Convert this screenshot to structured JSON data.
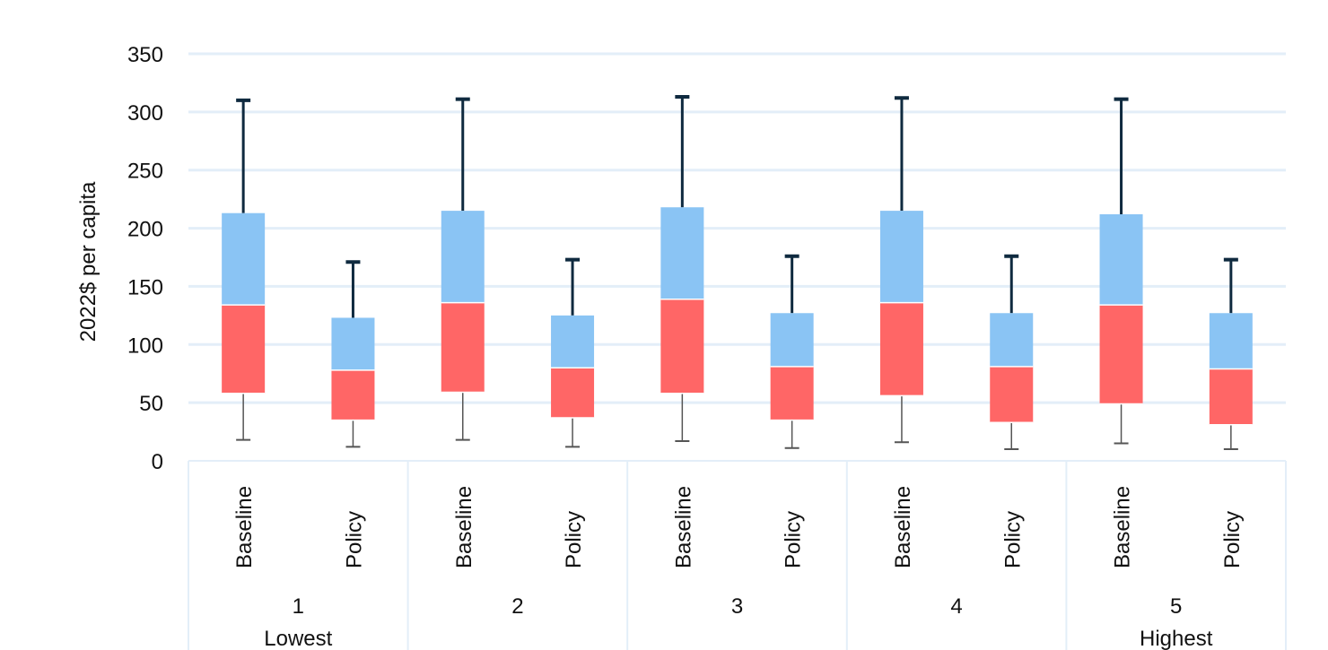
{
  "chart_data": {
    "type": "box",
    "ylabel": "2022$ per capita",
    "ylim": [
      0,
      350
    ],
    "yticks": [
      0,
      50,
      100,
      150,
      200,
      250,
      300,
      350
    ],
    "grid": true,
    "colors": {
      "lower_box": "#ff6666",
      "upper_box": "#8ac4f4",
      "whisker_upper": "#0f2a3f",
      "whisker_lower": "#555555",
      "grid": "#e3eef8"
    },
    "groups": [
      {
        "label": "1",
        "sublabel": "Lowest",
        "items": [
          {
            "label": "Baseline",
            "min": 18,
            "q1": 58,
            "median": 134,
            "q3": 213,
            "max": 310
          },
          {
            "label": "Policy",
            "min": 12,
            "q1": 35,
            "median": 78,
            "q3": 123,
            "max": 171
          }
        ]
      },
      {
        "label": "2",
        "sublabel": "",
        "items": [
          {
            "label": "Baseline",
            "min": 18,
            "q1": 59,
            "median": 136,
            "q3": 215,
            "max": 311
          },
          {
            "label": "Policy",
            "min": 12,
            "q1": 37,
            "median": 80,
            "q3": 125,
            "max": 173
          }
        ]
      },
      {
        "label": "3",
        "sublabel": "",
        "items": [
          {
            "label": "Baseline",
            "min": 17,
            "q1": 58,
            "median": 139,
            "q3": 218,
            "max": 313
          },
          {
            "label": "Policy",
            "min": 11,
            "q1": 35,
            "median": 81,
            "q3": 127,
            "max": 176
          }
        ]
      },
      {
        "label": "4",
        "sublabel": "",
        "items": [
          {
            "label": "Baseline",
            "min": 16,
            "q1": 56,
            "median": 136,
            "q3": 215,
            "max": 312
          },
          {
            "label": "Policy",
            "min": 10,
            "q1": 33,
            "median": 81,
            "q3": 127,
            "max": 176
          }
        ]
      },
      {
        "label": "5",
        "sublabel": "Highest",
        "items": [
          {
            "label": "Baseline",
            "min": 15,
            "q1": 49,
            "median": 134,
            "q3": 212,
            "max": 311
          },
          {
            "label": "Policy",
            "min": 10,
            "q1": 31,
            "median": 79,
            "q3": 127,
            "max": 173
          }
        ]
      }
    ]
  }
}
